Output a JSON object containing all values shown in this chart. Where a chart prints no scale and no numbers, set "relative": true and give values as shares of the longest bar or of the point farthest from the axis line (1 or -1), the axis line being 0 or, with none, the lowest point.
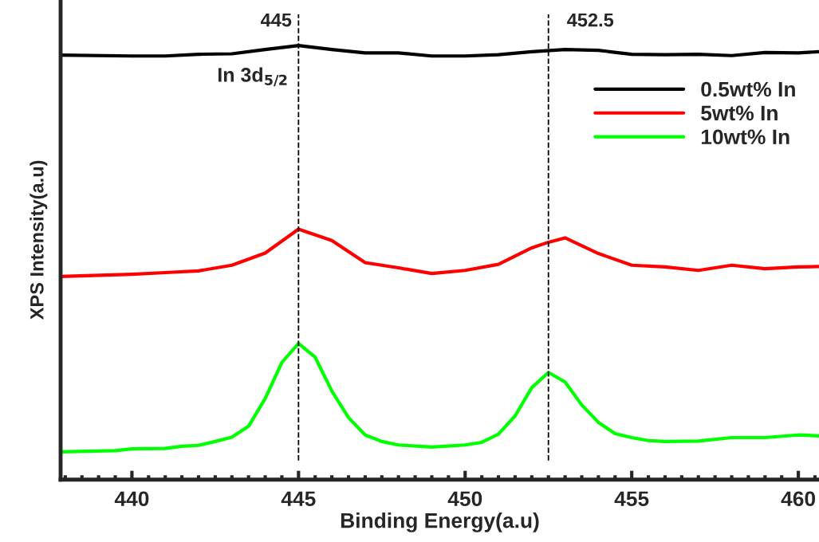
{
  "chart_data": {
    "type": "line",
    "relative": true,
    "xlabel": "Binding Energy(a.u)",
    "ylabel": "XPS Intensity(a.u)",
    "xlim": [
      437.86,
      460.62
    ],
    "xticks": [
      440,
      445,
      450,
      455,
      460
    ],
    "series": [
      {
        "name": "0.5wt% In",
        "color": "#000000",
        "x": [
          437.86,
          440,
          441,
          442,
          443,
          444,
          445,
          446,
          447,
          448,
          449,
          450,
          451,
          452,
          453,
          454,
          455,
          456,
          457,
          458,
          459,
          460,
          460.62
        ],
        "values": [
          0.978,
          0.976,
          0.976,
          0.98,
          0.981,
          0.991,
          1.0,
          0.991,
          0.983,
          0.983,
          0.976,
          0.976,
          0.979,
          0.986,
          0.991,
          0.989,
          0.98,
          0.979,
          0.98,
          0.977,
          0.984,
          0.983,
          0.986
        ]
      },
      {
        "name": "5wt% In",
        "color": "#ff0000",
        "x": [
          437.86,
          440,
          441,
          442,
          443,
          444,
          445,
          446,
          447,
          448,
          449,
          450,
          451,
          452,
          452.5,
          453,
          454,
          455,
          456,
          457,
          458,
          459,
          460,
          460.62
        ],
        "values": [
          0.468,
          0.473,
          0.477,
          0.481,
          0.494,
          0.522,
          0.577,
          0.551,
          0.5,
          0.488,
          0.475,
          0.482,
          0.496,
          0.534,
          0.547,
          0.557,
          0.521,
          0.494,
          0.49,
          0.482,
          0.494,
          0.486,
          0.49,
          0.491
        ]
      },
      {
        "name": "10wt% In",
        "color": "#00ff00",
        "x": [
          437.86,
          439.5,
          440,
          441,
          441.5,
          442,
          442.5,
          443,
          443.5,
          444,
          444.5,
          445,
          445.5,
          446,
          446.5,
          447,
          447.5,
          448,
          449,
          450,
          450.5,
          451,
          451.5,
          452,
          452.5,
          453,
          453.5,
          454,
          454.5,
          455,
          455.5,
          456,
          457,
          458,
          459,
          460,
          460.62
        ],
        "values": [
          0.064,
          0.067,
          0.071,
          0.072,
          0.077,
          0.079,
          0.088,
          0.098,
          0.123,
          0.187,
          0.27,
          0.314,
          0.282,
          0.204,
          0.143,
          0.103,
          0.088,
          0.08,
          0.075,
          0.08,
          0.086,
          0.105,
          0.147,
          0.212,
          0.247,
          0.225,
          0.172,
          0.132,
          0.106,
          0.097,
          0.09,
          0.088,
          0.089,
          0.097,
          0.097,
          0.103,
          0.101
        ]
      }
    ],
    "ref_lines": [
      {
        "axis": "x",
        "value": 445,
        "label": "445",
        "color": "#000000",
        "line_style": "dashed"
      },
      {
        "axis": "x",
        "value": 452.5,
        "label": "452.5",
        "color": "#000000",
        "line_style": "dashed"
      }
    ],
    "annotations": [
      {
        "text": "In 3d$_{5/2}$",
        "x": 445,
        "y": 0.95
      }
    ],
    "legend": "top right",
    "grid": false,
    "marker": "none",
    "line_style": "solid"
  }
}
